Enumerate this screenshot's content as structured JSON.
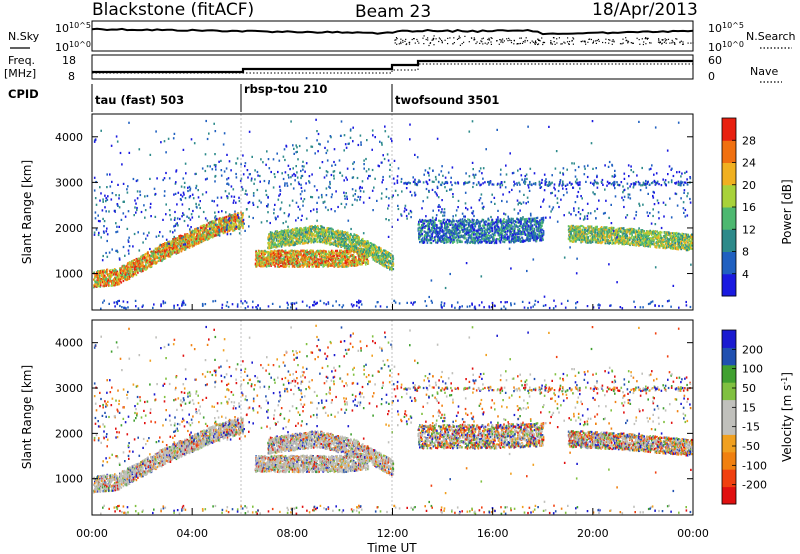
{
  "header": {
    "station": "Blackstone (fitACF)",
    "beam": "Beam 23",
    "date": "18/Apr/2013"
  },
  "top_panel": {
    "nsky_label": "N.Sky",
    "nsearch_label": "N.Search",
    "freq_label_1": "Freq.",
    "freq_label_2": "[MHz]",
    "nave_label": "Nave",
    "cpid_label": "CPID",
    "y_ticks_left_counts": [
      "10^5",
      "10^0"
    ],
    "y_ticks_left_freq": [
      "18",
      "8"
    ],
    "y_ticks_right_counts": [
      "10^5",
      "10^0"
    ],
    "y_ticks_right_nave": [
      "60",
      "0"
    ],
    "cpid_segments": [
      {
        "start": "00:00",
        "label": "tau (fast) 503"
      },
      {
        "start": "06:00",
        "label": "rbsp-tou 210"
      },
      {
        "start": "12:00",
        "label": "twofsound 3501"
      }
    ]
  },
  "chart_data": [
    {
      "type": "heatmap",
      "title": "",
      "xlabel": "Time UT",
      "ylabel": "Slant Range [km]",
      "x_ticks": [
        "00:00",
        "04:00",
        "08:00",
        "12:00",
        "16:00",
        "20:00",
        "00:00"
      ],
      "y_ticks": [
        1000,
        2000,
        3000,
        4000
      ],
      "xlim_hours": [
        0,
        24
      ],
      "ylim": [
        200,
        4500
      ],
      "colorbar": {
        "label": "Power [dB]",
        "ticks": [
          4,
          8,
          12,
          16,
          20,
          24,
          28
        ],
        "range": [
          0,
          32
        ],
        "colors": [
          "#1a1ae0",
          "#2060c0",
          "#2d8a8a",
          "#4db870",
          "#a8d23a",
          "#f0b020",
          "#f07010",
          "#e82010"
        ]
      },
      "scatter_bands": [
        {
          "t": [
            0.0,
            1.0,
            2.0,
            3.0,
            4.0,
            5.0,
            6.0
          ],
          "range": [
            900,
            950,
            1250,
            1550,
            1800,
            2050,
            2200
          ],
          "level": "high"
        },
        {
          "t": [
            6.5,
            8.0,
            10.0,
            11.0
          ],
          "range": [
            1350,
            1350,
            1350,
            1400
          ],
          "level": "high"
        },
        {
          "t": [
            7.0,
            9.0,
            10.5,
            12.0
          ],
          "range": [
            1750,
            1900,
            1700,
            1250
          ],
          "level": "mid"
        },
        {
          "t": [
            13.0,
            16.0,
            18.0
          ],
          "range": [
            1950,
            1950,
            2000
          ],
          "level": "low"
        },
        {
          "t": [
            19.0,
            21.0,
            23.0,
            24.0
          ],
          "range": [
            1900,
            1850,
            1750,
            1700
          ],
          "level": "mid"
        }
      ]
    },
    {
      "type": "heatmap",
      "title": "",
      "xlabel": "Time UT",
      "ylabel": "Slant Range [km]",
      "x_ticks": [
        "00:00",
        "04:00",
        "08:00",
        "12:00",
        "16:00",
        "20:00",
        "00:00"
      ],
      "y_ticks": [
        1000,
        2000,
        3000,
        4000
      ],
      "xlim_hours": [
        0,
        24
      ],
      "ylim": [
        200,
        4500
      ],
      "colorbar": {
        "label": "Velocity [m s-1]",
        "ticks": [
          "200",
          "100",
          "50",
          "15",
          "-15",
          "-50",
          "-100",
          "-200"
        ],
        "range": [
          -250,
          250
        ],
        "colors": [
          "#e01010",
          "#f04010",
          "#f08010",
          "#f0a020",
          "#c0c0bc",
          "#c0c0bc",
          "#80c040",
          "#40a030",
          "#2050b0",
          "#1a1ad0"
        ]
      },
      "ground_scatter_color": "#bdbdb8"
    }
  ]
}
